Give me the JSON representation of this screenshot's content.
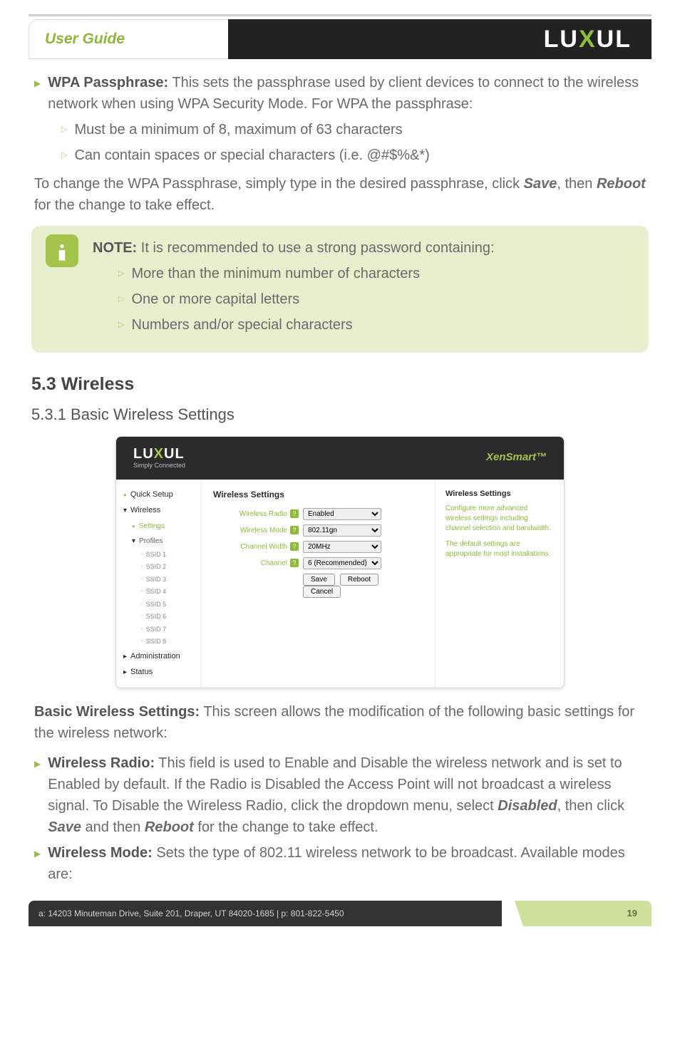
{
  "header": {
    "userGuide": "User Guide",
    "brand_pre": "LU",
    "brand_x": "X",
    "brand_post": "UL"
  },
  "wpa": {
    "label": "WPA Passphrase:",
    "text": " This sets the passphrase used by client devices to connect to the wireless network when using WPA Security Mode. For WPA the passphrase:",
    "sub1": "Must be a minimum of 8, maximum of 63 characters",
    "sub2": "Can contain spaces or special characters (i.e. @#$%&*)"
  },
  "change": {
    "pre": "To change the WPA Passphrase, simply type in the desired passphrase,  click ",
    "save": "Save",
    "mid": ", then ",
    "reboot": "Reboot",
    "post": " for the change to take effect."
  },
  "note": {
    "label": "NOTE:",
    "text": " It is recommended to use a strong password containing:",
    "i1": "More than the minimum number of characters",
    "i2": "One or more capital letters",
    "i3": "Numbers and/or special characters"
  },
  "sec": {
    "h2": "5.3 Wireless",
    "h3": "5.3.1 Basic Wireless Settings"
  },
  "ss": {
    "brand": "LUXUL",
    "brandTag": "Simply Connected",
    "model": "XenSmart™",
    "nav": {
      "quick": "Quick Setup",
      "wireless": "Wireless",
      "settings": "Settings",
      "profiles": "Profiles",
      "ssids": [
        "SSID 1",
        "SSID 2",
        "SSID 3",
        "SSID 4",
        "SSID 5",
        "SSID 6",
        "SSID 7",
        "SSID 8"
      ],
      "admin": "Administration",
      "status": "Status"
    },
    "panelTitle": "Wireless Settings",
    "rows": {
      "radioLabel": "Wireless Radio",
      "radioVal": "Enabled",
      "modeLabel": "Wireless Mode",
      "modeVal": "802.11gn",
      "widthLabel": "Channel Width",
      "widthVal": "20MHz",
      "chanLabel": "Channel",
      "chanVal": "6 (Recommended)"
    },
    "btns": {
      "save": "Save",
      "reboot": "Reboot",
      "cancel": "Cancel"
    },
    "aside": {
      "title": "Wireless Settings",
      "p1": "Configure more advanced wireless settings including channel selection and bandwidth.",
      "p2": "The default settings are appropriate for most installations."
    }
  },
  "bws": {
    "label": "Basic Wireless Settings:",
    "text": " This screen allows the modification of the following basic settings for the wireless network:"
  },
  "radio": {
    "label": "Wireless Radio:",
    "pre": " This field is used to Enable and Disable the wireless network and is set to Enabled by default. If the Radio is Disabled the Access Point will not broadcast a wireless signal. To Disable the Wireless Radio, click the dropdown menu, select ",
    "disabled": "Disabled",
    "mid1": ", then click ",
    "save": "Save",
    "mid2": " and then ",
    "reboot": "Reboot",
    "post": " for the change to take effect."
  },
  "mode": {
    "label": "Wireless Mode:",
    "text": " Sets the type of 802.11 wireless network to be broadcast. Available modes are:"
  },
  "footer": {
    "addr": "a: 14203 Minuteman Drive, Suite 201, Draper, UT 84020-1685 | p: 801-822-5450",
    "page": "19"
  }
}
